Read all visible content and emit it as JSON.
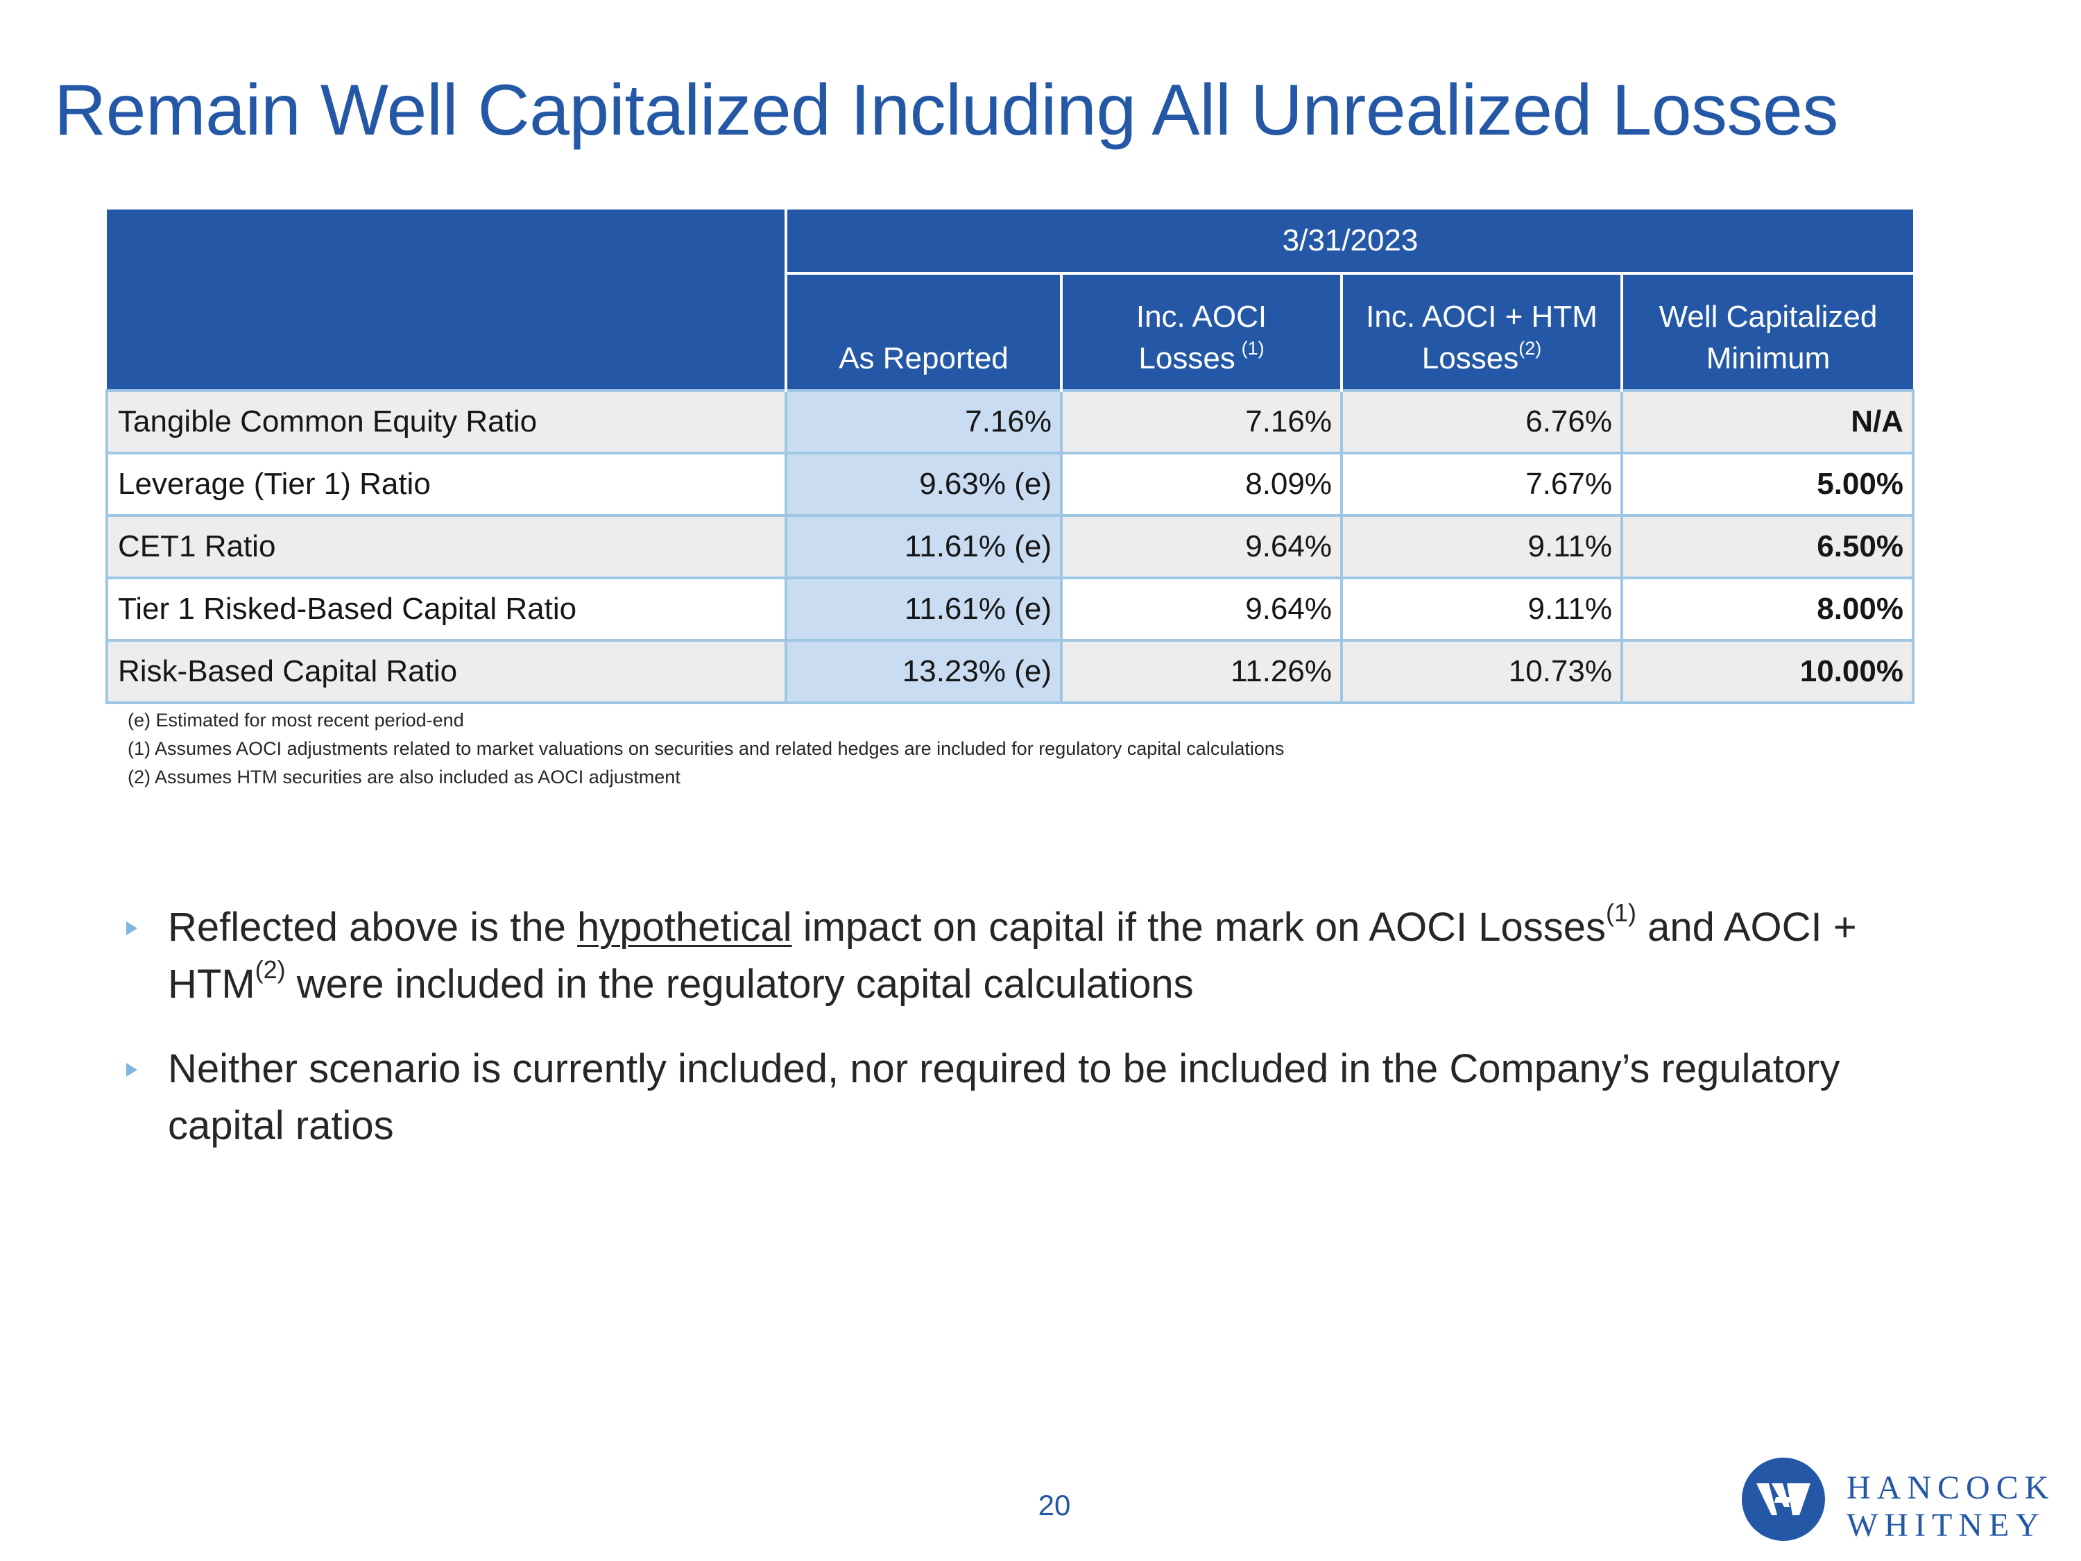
{
  "title": "Remain Well Capitalized Including All Unrealized Losses",
  "table": {
    "date_header": "3/31/2023",
    "columns": [
      {
        "line1": "",
        "line2": "As Reported",
        "sup": ""
      },
      {
        "line1": "Inc. AOCI",
        "line2": "Losses",
        "sup": "(1)"
      },
      {
        "line1": "Inc. AOCI + HTM",
        "line2": "Losses",
        "sup": "(2)"
      },
      {
        "line1": "Well Capitalized",
        "line2": "Minimum",
        "sup": ""
      }
    ],
    "rows": [
      {
        "label": "Tangible Common Equity Ratio",
        "as_reported": "7.16%",
        "inc_aoci": "7.16%",
        "inc_aoci_htm": "6.76%",
        "well_cap_min": "N/A"
      },
      {
        "label": "Leverage (Tier 1) Ratio",
        "as_reported": "9.63% (e)",
        "inc_aoci": "8.09%",
        "inc_aoci_htm": "7.67%",
        "well_cap_min": "5.00%"
      },
      {
        "label": "CET1 Ratio",
        "as_reported": "11.61% (e)",
        "inc_aoci": "9.64%",
        "inc_aoci_htm": "9.11%",
        "well_cap_min": "6.50%"
      },
      {
        "label": "Tier 1 Risked-Based Capital Ratio",
        "as_reported": "11.61% (e)",
        "inc_aoci": "9.64%",
        "inc_aoci_htm": "9.11%",
        "well_cap_min": "8.00%"
      },
      {
        "label": "Risk-Based Capital Ratio",
        "as_reported": "13.23% (e)",
        "inc_aoci": "11.26%",
        "inc_aoci_htm": "10.73%",
        "well_cap_min": "10.00%"
      }
    ]
  },
  "footnotes": [
    "(e)  Estimated for most recent period-end",
    "(1)  Assumes AOCI adjustments related to market valuations on securities and related hedges are included for regulatory capital calculations",
    "(2)  Assumes HTM securities are also included as AOCI adjustment"
  ],
  "bullets": {
    "b1": {
      "pre": "Reflected above is the ",
      "underlined": "hypothetical",
      "mid": " impact on capital if the mark on AOCI Losses",
      "sup1": "(1)",
      "mid2": " and AOCI + HTM",
      "sup2": "(2)",
      "post": " were included in the regulatory capital calculations"
    },
    "b2": {
      "text": "Neither scenario is currently included, nor required to be included in the Company’s regulatory capital ratios"
    }
  },
  "page_number": "20",
  "logo": {
    "line1": "HANCOCK",
    "line2": "WHITNEY",
    "icon": "hancock-whitney-hw-mark",
    "color": "#2458a6"
  },
  "colors": {
    "primary_blue": "#2458a6",
    "border_light_blue": "#9fc6e3",
    "as_reported_fill": "#c9dcf2",
    "bullet_marker": "#7fb6e0"
  }
}
